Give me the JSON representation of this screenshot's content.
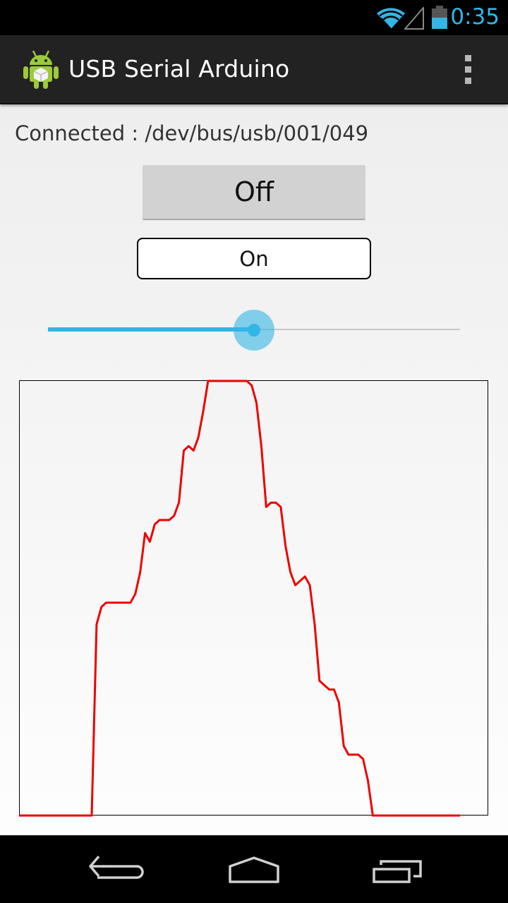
{
  "status_bar": {
    "time": "0:35",
    "icons": [
      "wifi-icon",
      "signal-icon",
      "battery-icon"
    ],
    "accent_color": "#33b5e5"
  },
  "action_bar": {
    "title": "USB Serial Arduino",
    "app_icon": "android-robot-icon",
    "menu_icon": "overflow-menu-icon"
  },
  "main": {
    "connection_status": "Connected : /dev/bus/usb/001/049",
    "off_button_label": "Off",
    "on_button_label": "On",
    "seekbar_fraction": 0.5
  },
  "graph": {
    "line_color": "#ee0000",
    "values": [
      0,
      0,
      0,
      0,
      0,
      0,
      0,
      0,
      0,
      0,
      0,
      0,
      0,
      0,
      0,
      0,
      0.44,
      0.48,
      0.49,
      0.49,
      0.49,
      0.49,
      0.49,
      0.49,
      0.51,
      0.56,
      0.65,
      0.63,
      0.67,
      0.68,
      0.68,
      0.68,
      0.69,
      0.72,
      0.84,
      0.85,
      0.84,
      0.87,
      0.93,
      1.0,
      1.0,
      1.0,
      1.0,
      1.0,
      1.0,
      1.0,
      1.0,
      1.0,
      0.99,
      0.95,
      0.85,
      0.71,
      0.72,
      0.72,
      0.71,
      0.62,
      0.56,
      0.53,
      0.54,
      0.55,
      0.53,
      0.44,
      0.31,
      0.3,
      0.29,
      0.29,
      0.26,
      0.16,
      0.14,
      0.14,
      0.14,
      0.13,
      0.08,
      0.0,
      0.0,
      0.0,
      0.0,
      0.0,
      0.0,
      0.0,
      0.0,
      0.0,
      0.0,
      0.0,
      0.0,
      0.0,
      0.0,
      0.0,
      0.0,
      0.0,
      0.0,
      0.0
    ]
  },
  "nav_bar": {
    "buttons": [
      "back-icon",
      "home-icon",
      "recent-apps-icon"
    ]
  }
}
